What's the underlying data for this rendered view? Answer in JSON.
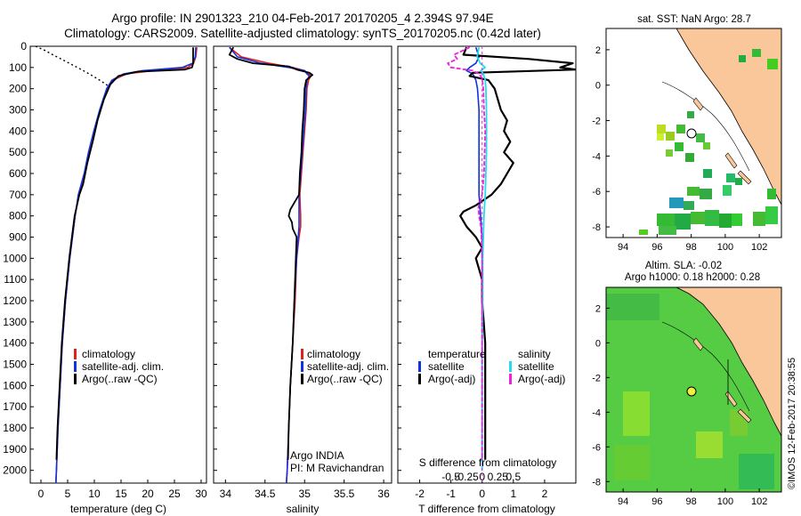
{
  "header": {
    "title_line1": "Argo profile: IN 2901323_210 04-Feb-2017 20170205_4 2.394S 97.94E",
    "title_line2": "Climatology: CARS2009. Satellite-adjusted climatology: synTS_20170205.nc (0.42d later)"
  },
  "colors": {
    "climatology": "#dd2222",
    "satellite": "#1133dd",
    "argo": "#000000",
    "salinity_satellite": "#22ddee",
    "salinity_argo": "#ee22dd",
    "land": "#f9c79a",
    "sst_field": "#33bb33",
    "sla_field": "#55cc44"
  },
  "chart_data": [
    {
      "type": "line",
      "id": "temperature",
      "xlabel": "temperature (deg C)",
      "ylabel": "",
      "xlim": [
        -2,
        31
      ],
      "ylim": [
        2060,
        0
      ],
      "xticks": [
        0,
        5,
        10,
        15,
        20,
        25,
        30
      ],
      "yticks": [
        0,
        100,
        200,
        300,
        400,
        500,
        600,
        700,
        800,
        900,
        1000,
        1100,
        1200,
        1300,
        1400,
        1500,
        1600,
        1700,
        1800,
        1900,
        2000
      ],
      "legend": [
        "climatology",
        "satellite-adj. clim.",
        "Argo(..raw -QC)"
      ],
      "series": [
        {
          "name": "climatology",
          "depth": [
            5,
            50,
            80,
            100,
            115,
            130,
            160,
            200,
            300,
            400,
            500,
            600,
            700,
            800,
            900,
            1000,
            1200,
            1400,
            1600,
            1800,
            2000,
            2060
          ],
          "values": [
            29.2,
            29.0,
            28.6,
            27.5,
            21.0,
            16.0,
            13.5,
            12.4,
            11.1,
            10.0,
            9.0,
            8.2,
            7.1,
            6.4,
            5.9,
            5.4,
            4.6,
            4.0,
            3.6,
            3.2,
            2.9,
            2.8
          ]
        },
        {
          "name": "satellite-adj. clim.",
          "depth": [
            5,
            50,
            80,
            100,
            115,
            130,
            160,
            200,
            300,
            400,
            500,
            600,
            700,
            800,
            900,
            1000,
            1200,
            1400,
            1600,
            1800,
            2000,
            2060
          ],
          "values": [
            29.0,
            28.9,
            28.4,
            26.5,
            19.0,
            15.5,
            13.3,
            12.3,
            11.0,
            9.9,
            8.9,
            8.1,
            7.0,
            6.4,
            5.9,
            5.4,
            4.6,
            4.0,
            3.6,
            3.2,
            2.9,
            2.8
          ]
        },
        {
          "name": "Argo(..raw -QC)",
          "depth": [
            5,
            40,
            80,
            100,
            110,
            120,
            140,
            180,
            250,
            350,
            450,
            550,
            650,
            700,
            800,
            900,
            1000,
            1200,
            1400,
            1600,
            1800,
            1950
          ],
          "values": [
            28.5,
            28.5,
            28.5,
            28.3,
            27.0,
            18.0,
            14.5,
            13.0,
            11.8,
            10.6,
            9.7,
            8.7,
            7.9,
            7.2,
            6.3,
            5.8,
            5.3,
            4.5,
            3.9,
            3.5,
            3.1,
            2.9
          ]
        },
        {
          "name": "Argo(..raw -QC) QC-flagged",
          "depth": [
            0,
            20,
            40,
            60,
            80,
            100,
            120,
            140,
            160,
            180,
            190
          ],
          "values": [
            -1.0,
            0.8,
            2.2,
            3.8,
            5.3,
            6.8,
            8.3,
            9.7,
            11.0,
            12.2,
            12.8
          ]
        }
      ]
    },
    {
      "type": "line",
      "id": "salinity",
      "xlabel": "salinity",
      "ylabel": "",
      "xlim": [
        33.85,
        36.1
      ],
      "ylim": [
        2060,
        0
      ],
      "xticks": [
        34,
        34.5,
        35,
        35.5,
        36
      ],
      "xticklabels": [
        "34",
        "34.5",
        "35",
        "35.5",
        "36"
      ],
      "legend": [
        "climatology",
        "satellite-adj. clim.",
        "Argo(..raw -QC)"
      ],
      "annotation": [
        "Argo INDIA",
        "PI: M Ravichandran"
      ],
      "series": [
        {
          "name": "climatology",
          "depth": [
            5,
            50,
            80,
            100,
            115,
            130,
            140,
            160,
            200,
            300,
            400,
            500,
            600,
            700,
            800,
            850,
            900,
            1000,
            1200,
            1400,
            1600,
            1800,
            2000,
            2060
          ],
          "values": [
            34.05,
            34.2,
            34.55,
            34.85,
            35.0,
            35.05,
            35.08,
            35.05,
            35.03,
            35.02,
            35.0,
            34.98,
            34.96,
            34.94,
            34.95,
            34.95,
            34.93,
            34.9,
            34.88,
            34.85,
            34.82,
            34.8,
            34.78,
            34.77
          ]
        },
        {
          "name": "satellite-adj. clim.",
          "depth": [
            5,
            50,
            80,
            100,
            115,
            130,
            140,
            160,
            200,
            300,
            400,
            500,
            600,
            700,
            800,
            850,
            900,
            1000,
            1200,
            1400,
            1600,
            1800,
            2000,
            2060
          ],
          "values": [
            34.05,
            34.15,
            34.45,
            34.8,
            35.0,
            35.03,
            35.06,
            35.03,
            35.02,
            35.01,
            34.99,
            34.97,
            34.95,
            34.93,
            34.93,
            34.93,
            34.92,
            34.9,
            34.87,
            34.85,
            34.82,
            34.8,
            34.78,
            34.77
          ]
        },
        {
          "name": "Argo(..raw -QC)",
          "depth": [
            5,
            40,
            60,
            80,
            95,
            110,
            125,
            135,
            160,
            200,
            300,
            400,
            500,
            600,
            700,
            770,
            800,
            830,
            860,
            900,
            1000,
            1200,
            1400,
            1600,
            1800,
            1950
          ],
          "values": [
            34.1,
            34.05,
            34.15,
            34.35,
            34.8,
            34.9,
            35.06,
            35.1,
            35.02,
            35.0,
            34.99,
            34.97,
            34.96,
            34.94,
            34.93,
            34.82,
            34.8,
            34.84,
            34.85,
            34.9,
            34.89,
            34.87,
            34.85,
            34.82,
            34.8,
            34.79
          ]
        }
      ]
    },
    {
      "type": "line",
      "id": "difference",
      "xlabel": "T difference from climatology",
      "xlabel_top": "S difference from climatology",
      "ylabel": "",
      "xlim": [
        -2.7,
        3.0
      ],
      "ylim": [
        2060,
        0
      ],
      "xticks": [
        -2,
        -1,
        0,
        1,
        2
      ],
      "xticks_top": [
        -0.5,
        -0.25,
        0,
        0.25,
        0.5
      ],
      "xticklabels_top": [
        "-0.5",
        "-0.25",
        "0",
        "0.25",
        "0.5"
      ],
      "legend": [
        "temperature",
        "satellite",
        "Argo(-adj)",
        "salinity",
        "satellite",
        "Argo(-adj)"
      ],
      "series": [
        {
          "name": "temperature satellite",
          "depth": [
            5,
            50,
            80,
            100,
            115,
            130,
            160,
            200,
            300,
            400,
            500,
            600,
            700,
            800,
            900,
            1000,
            1200,
            1400,
            1600,
            1800,
            2000
          ],
          "values": [
            -0.2,
            -0.1,
            -0.2,
            -0.4,
            -0.5,
            -0.3,
            -0.2,
            -0.15,
            -0.1,
            -0.1,
            -0.1,
            -0.1,
            -0.1,
            -0.05,
            0,
            0,
            0,
            0,
            0,
            0,
            0
          ]
        },
        {
          "name": "temperature Argo(-adj)",
          "depth": [
            5,
            40,
            60,
            80,
            90,
            100,
            110,
            125,
            140,
            160,
            200,
            250,
            300,
            350,
            400,
            450,
            500,
            550,
            600,
            650,
            700,
            750,
            780,
            800,
            850,
            900,
            950,
            1000,
            1050,
            1100,
            1200,
            1300,
            1400,
            1500,
            1600,
            1700,
            1800,
            1900,
            1950
          ],
          "values": [
            -0.5,
            -0.6,
            1.5,
            2.9,
            2.7,
            2.5,
            3.0,
            -0.3,
            -0.4,
            0.2,
            0.4,
            0.5,
            0.6,
            0.8,
            0.7,
            0.9,
            0.7,
            1.0,
            0.8,
            0.6,
            0.3,
            -0.2,
            -0.6,
            -0.7,
            -0.5,
            -0.2,
            0.0,
            -0.2,
            -0.1,
            0,
            0,
            0.05,
            0.1,
            0.1,
            0.1,
            0.1,
            0.1,
            0.1,
            0.1
          ]
        },
        {
          "name": "salinity satellite",
          "depth": [
            5,
            50,
            80,
            100,
            115,
            130,
            160,
            200,
            300,
            400,
            500,
            600,
            700,
            800,
            900,
            1000,
            1200,
            1400,
            1600,
            1800,
            2000
          ],
          "values": [
            -0.05,
            -0.08,
            -0.03,
            0.05,
            -0.02,
            0.02,
            0.05,
            0.06,
            0.07,
            0.07,
            0.07,
            0.06,
            0.05,
            0.03,
            0.02,
            0.01,
            0.01,
            0.0,
            0.0,
            0.0,
            0.0
          ]
        },
        {
          "name": "salinity Argo(-adj)",
          "depth": [
            5,
            40,
            60,
            80,
            100,
            115,
            130,
            150,
            200,
            300,
            400,
            500,
            600,
            700,
            760,
            800,
            850,
            900,
            1000,
            1200,
            1400,
            1600,
            1800,
            1950
          ],
          "values": [
            -0.2,
            -0.45,
            -0.4,
            -0.55,
            -0.5,
            -0.15,
            -0.05,
            0.0,
            0.02,
            0.03,
            0.05,
            0.04,
            0.03,
            0.0,
            -0.06,
            -0.05,
            -0.02,
            -0.01,
            0.0,
            0.0,
            0.0,
            0.0,
            0.0,
            0.0
          ]
        }
      ]
    },
    {
      "type": "heatmap",
      "id": "sst_map",
      "title": "sat. SST: NaN Argo: 28.7",
      "xlim": [
        93,
        103.3
      ],
      "ylim": [
        -8.6,
        3.2
      ],
      "xticks": [
        94,
        96,
        98,
        100,
        102
      ],
      "yticks": [
        2,
        0,
        -2,
        -4,
        -6,
        -8
      ],
      "argo_position": {
        "lon": 97.94,
        "lat": -2.394
      }
    },
    {
      "type": "heatmap",
      "id": "sla_map",
      "title": "Altim. SLA: -0.02",
      "subtitle": "Argo h1000: 0.18 h2000: 0.28",
      "xlim": [
        93,
        103.3
      ],
      "ylim": [
        -8.6,
        3.2
      ],
      "xticks": [
        94,
        96,
        98,
        100,
        102
      ],
      "yticks": [
        2,
        0,
        -2,
        -4,
        -6,
        -8
      ],
      "argo_position": {
        "lon": 97.94,
        "lat": -2.394
      }
    }
  ],
  "footer": {
    "imos_stamp": "©IMOS 12-Feb-2017 20:38:55"
  }
}
